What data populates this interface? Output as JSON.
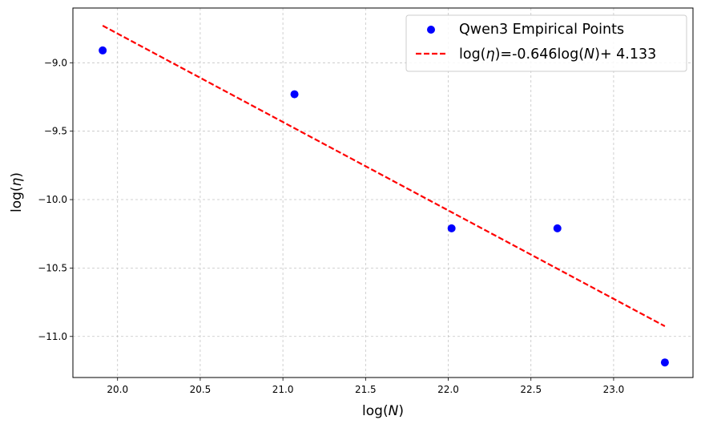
{
  "chart_data": {
    "type": "scatter",
    "xlabel": "log(N)",
    "ylabel": "log(η)",
    "xlim": [
      19.73,
      23.48
    ],
    "ylim": [
      -11.3,
      -8.6
    ],
    "xticks": [
      20.0,
      20.5,
      21.0,
      21.5,
      22.0,
      22.5,
      23.0
    ],
    "yticks": [
      -9.0,
      -9.5,
      -10.0,
      -10.5,
      -11.0
    ],
    "xtick_labels": [
      "20.0",
      "20.5",
      "21.0",
      "21.5",
      "22.0",
      "22.5",
      "23.0"
    ],
    "ytick_labels": [
      "−9.0",
      "−9.5",
      "−10.0",
      "−10.5",
      "−11.0"
    ],
    "grid": true,
    "legend_position": "top-right",
    "series": [
      {
        "name": "Qwen3 Empirical Points",
        "kind": "scatter",
        "color": "#0000ff",
        "x": [
          19.91,
          21.07,
          22.02,
          22.66,
          23.31
        ],
        "y": [
          -8.91,
          -9.23,
          -10.21,
          -10.21,
          -11.19
        ]
      },
      {
        "name": "log(η)=-0.646log(N)+ 4.133",
        "kind": "line",
        "style": "dashed",
        "color": "#ff0000",
        "slope": -0.646,
        "intercept": 4.133,
        "x_range": [
          19.91,
          23.31
        ]
      }
    ],
    "legend": {
      "scatter_label": {
        "pre": "Qwen3 Empirical Points"
      },
      "line_label": {
        "pre": "log(",
        "eta": "η",
        "mid1": ")=-0.646log(",
        "n": "N",
        "post": ")+ 4.133"
      }
    },
    "axis_labels": {
      "x": {
        "pre": "log(",
        "var": "N",
        "post": ")"
      },
      "y": {
        "pre": "log(",
        "var": "η",
        "post": ")"
      }
    }
  }
}
